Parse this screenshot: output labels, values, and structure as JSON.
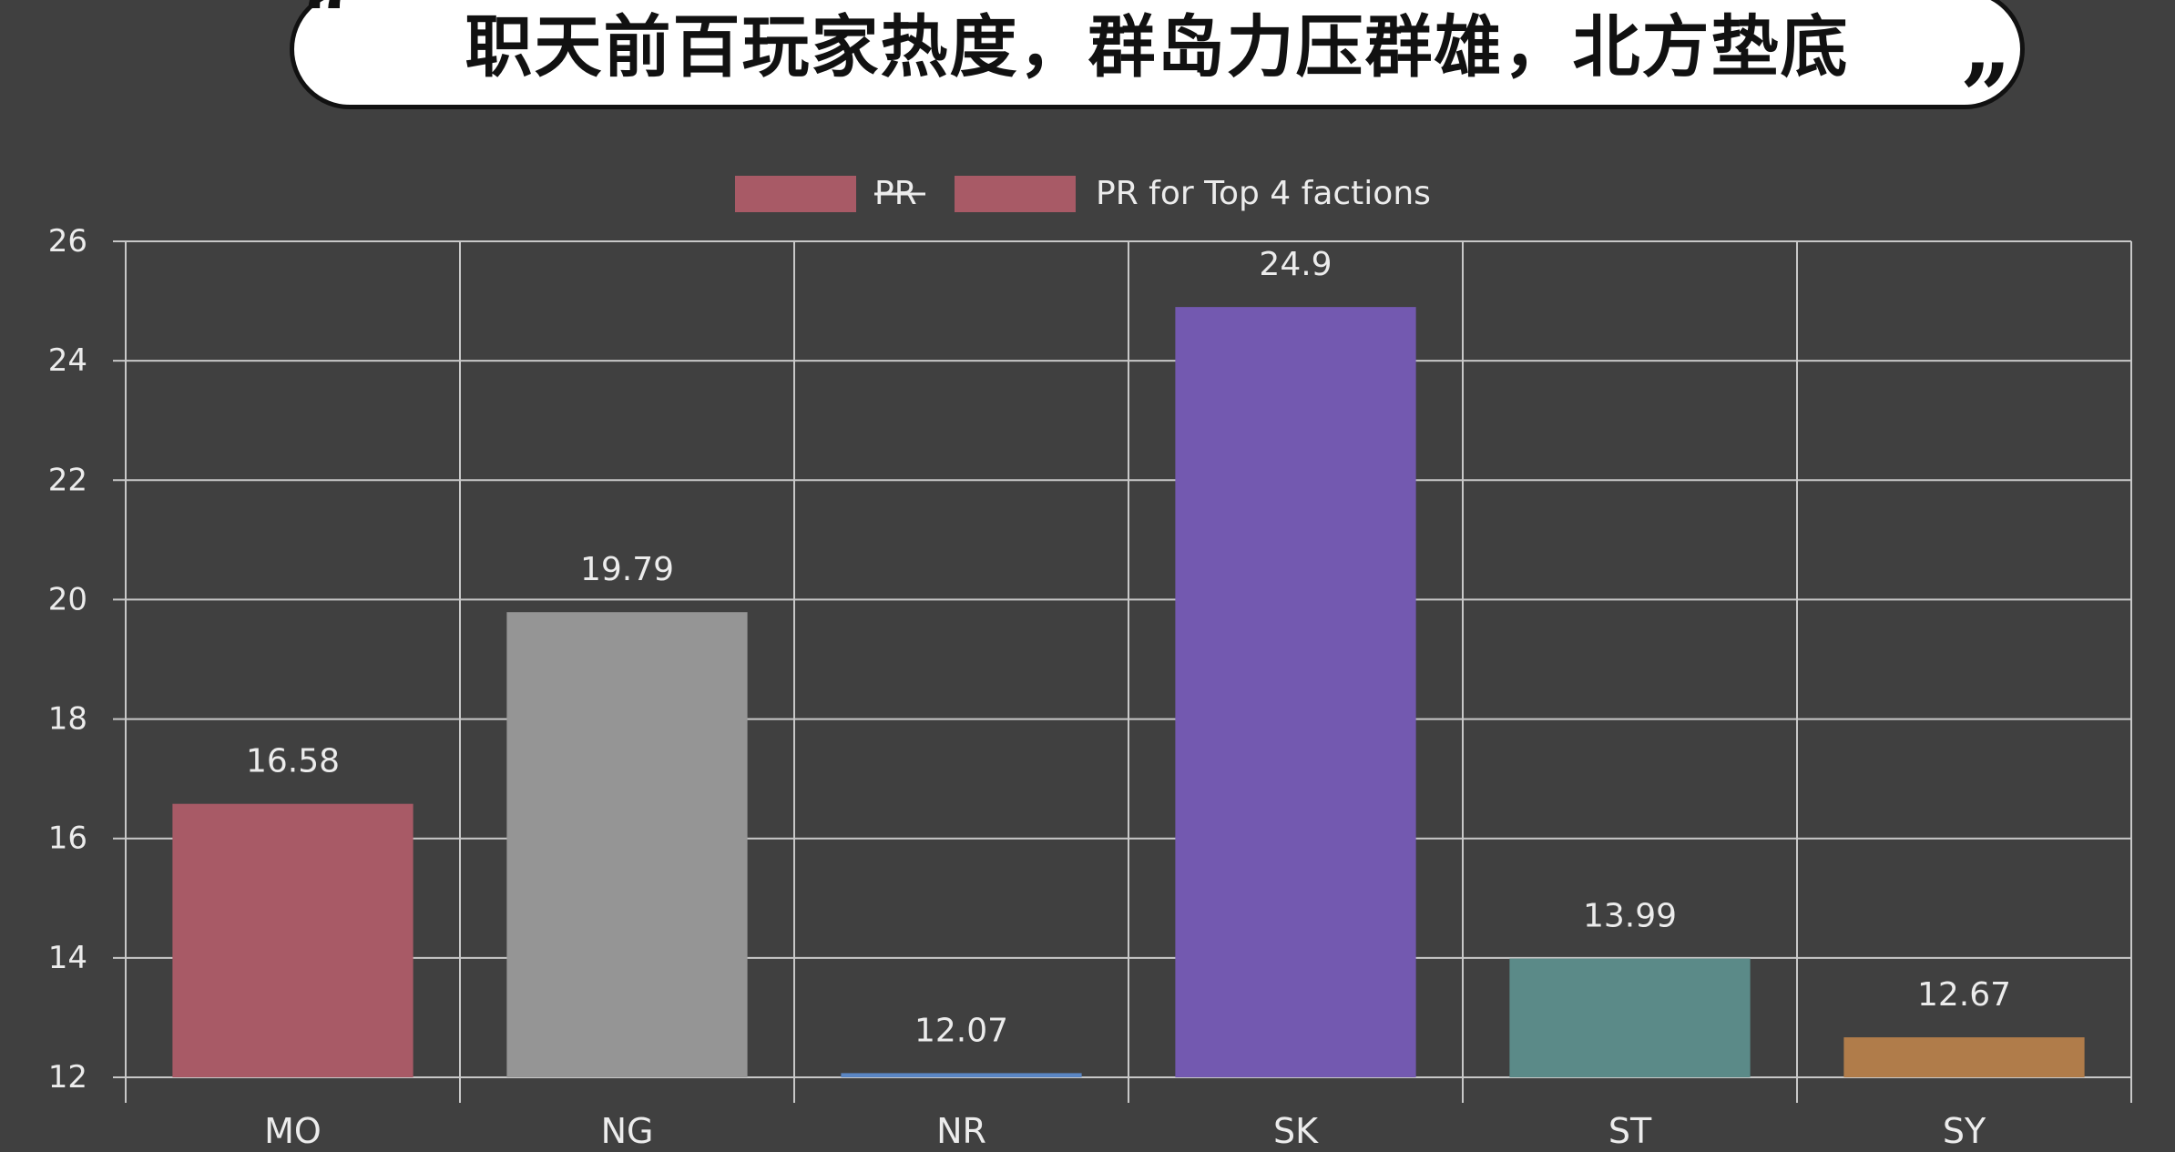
{
  "headline": {
    "text": "职天前百玩家热度，群岛力压群雄，北方垫底",
    "open_quote": "“",
    "close_quote": "”"
  },
  "colors": {
    "background": "#404040",
    "grid": "#c8c8c8",
    "text": "#ececec",
    "legend_swatch": "#a85a66"
  },
  "chart_data": {
    "type": "bar",
    "title": "",
    "xlabel": "",
    "ylabel": "",
    "categories": [
      "MO",
      "NG",
      "NR",
      "SK",
      "ST",
      "SY"
    ],
    "values": [
      16.58,
      19.79,
      12.07,
      24.9,
      13.99,
      12.67
    ],
    "value_labels": [
      "16.58",
      "19.79",
      "12.07",
      "24.9",
      "13.99",
      "12.67"
    ],
    "bar_colors": [
      "#a85a66",
      "#959595",
      "#5a86c4",
      "#7359b0",
      "#5b8a88",
      "#b07c4a"
    ],
    "ylim": [
      12,
      26
    ],
    "yticks": [
      12,
      14,
      16,
      18,
      20,
      22,
      24,
      26
    ],
    "grid": true,
    "legend": {
      "placement": "top-center",
      "entries": [
        {
          "label": "PR",
          "color": "#a85a66",
          "hidden": true
        },
        {
          "label": "PR for Top 4 factions",
          "color": "#a85a66",
          "hidden": false
        }
      ]
    }
  }
}
